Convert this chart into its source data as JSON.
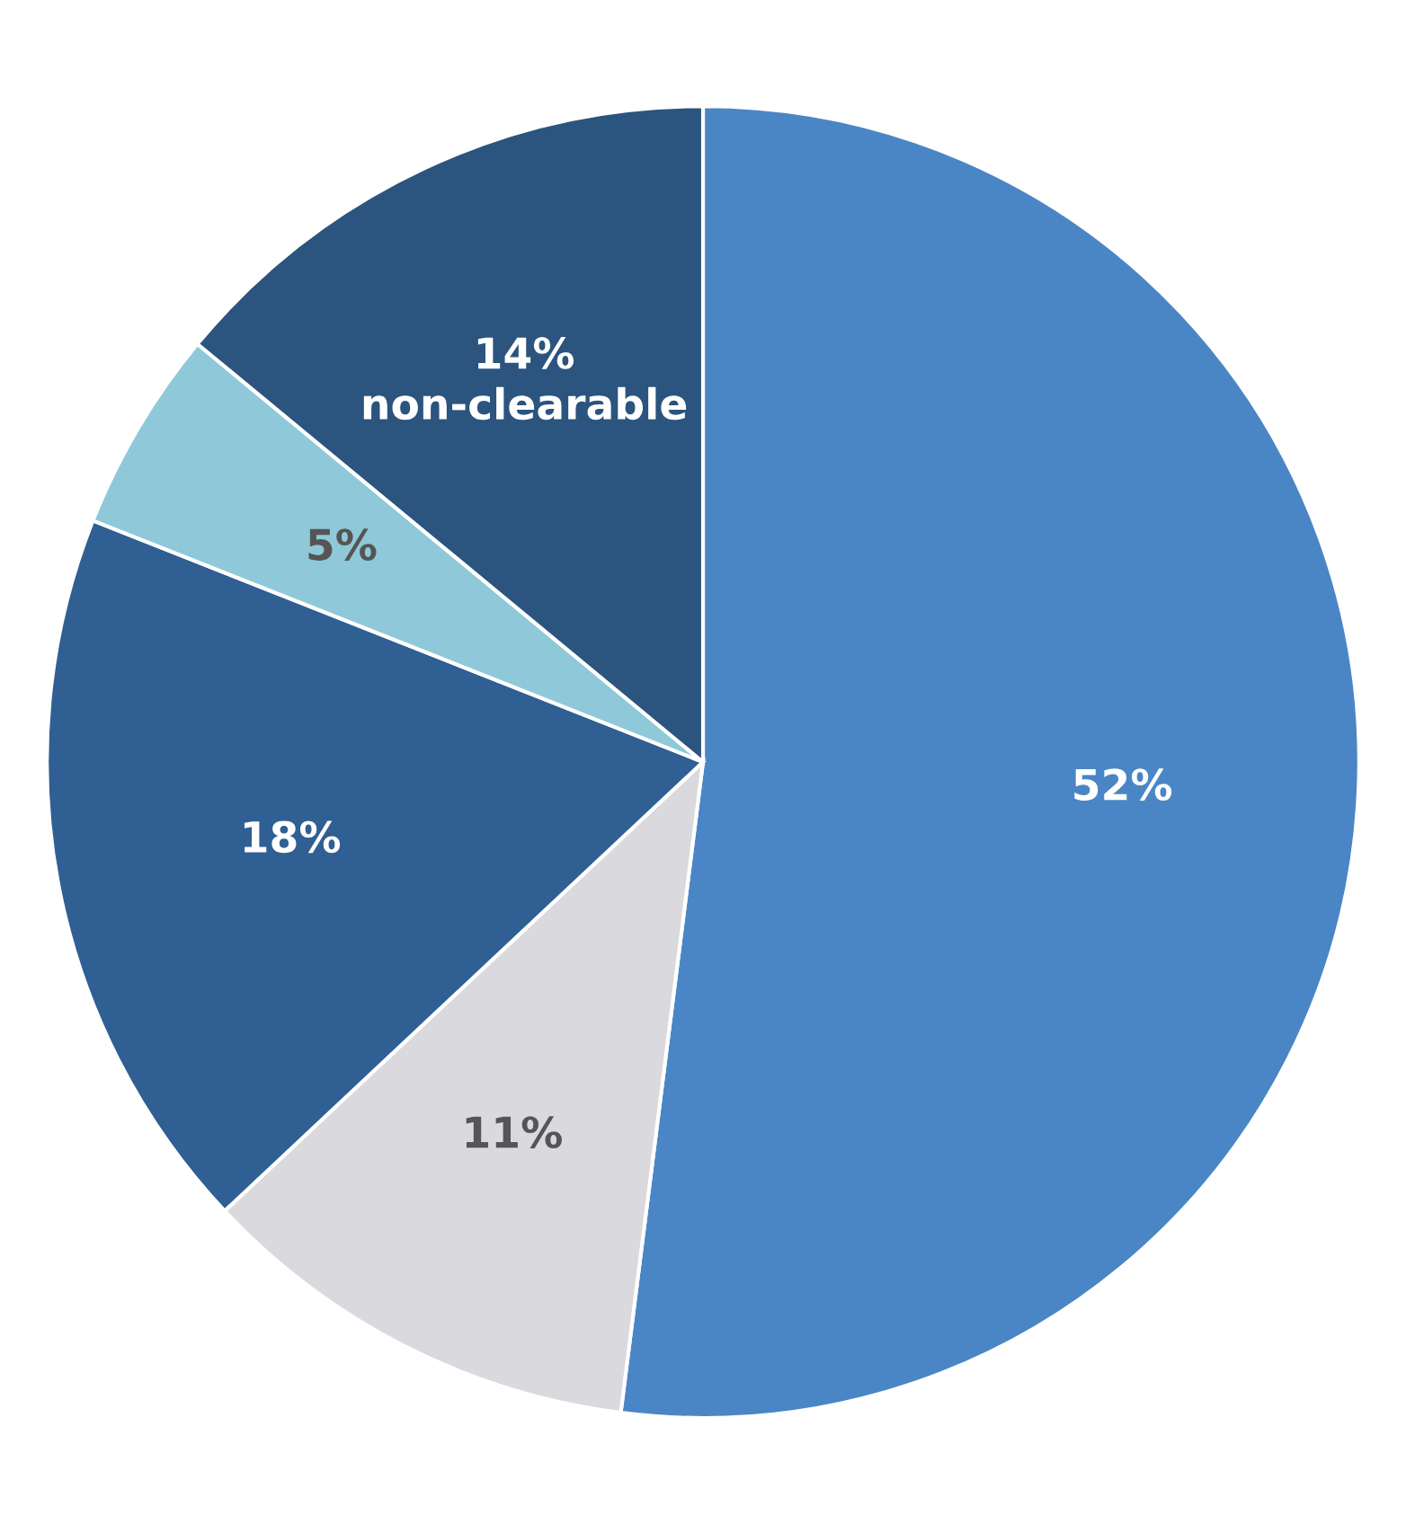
{
  "chart_data": {
    "type": "pie",
    "categories": [
      null,
      null,
      null,
      null,
      "non-clearable"
    ],
    "values": [
      52,
      11,
      18,
      5,
      14
    ],
    "value_labels": [
      "52%",
      "11%",
      "18%",
      "5%",
      "14%"
    ],
    "colors": [
      "#4a86c5",
      "#d9d9de",
      "#2f5f93",
      "#8fc9d9",
      "#2b547e"
    ]
  }
}
